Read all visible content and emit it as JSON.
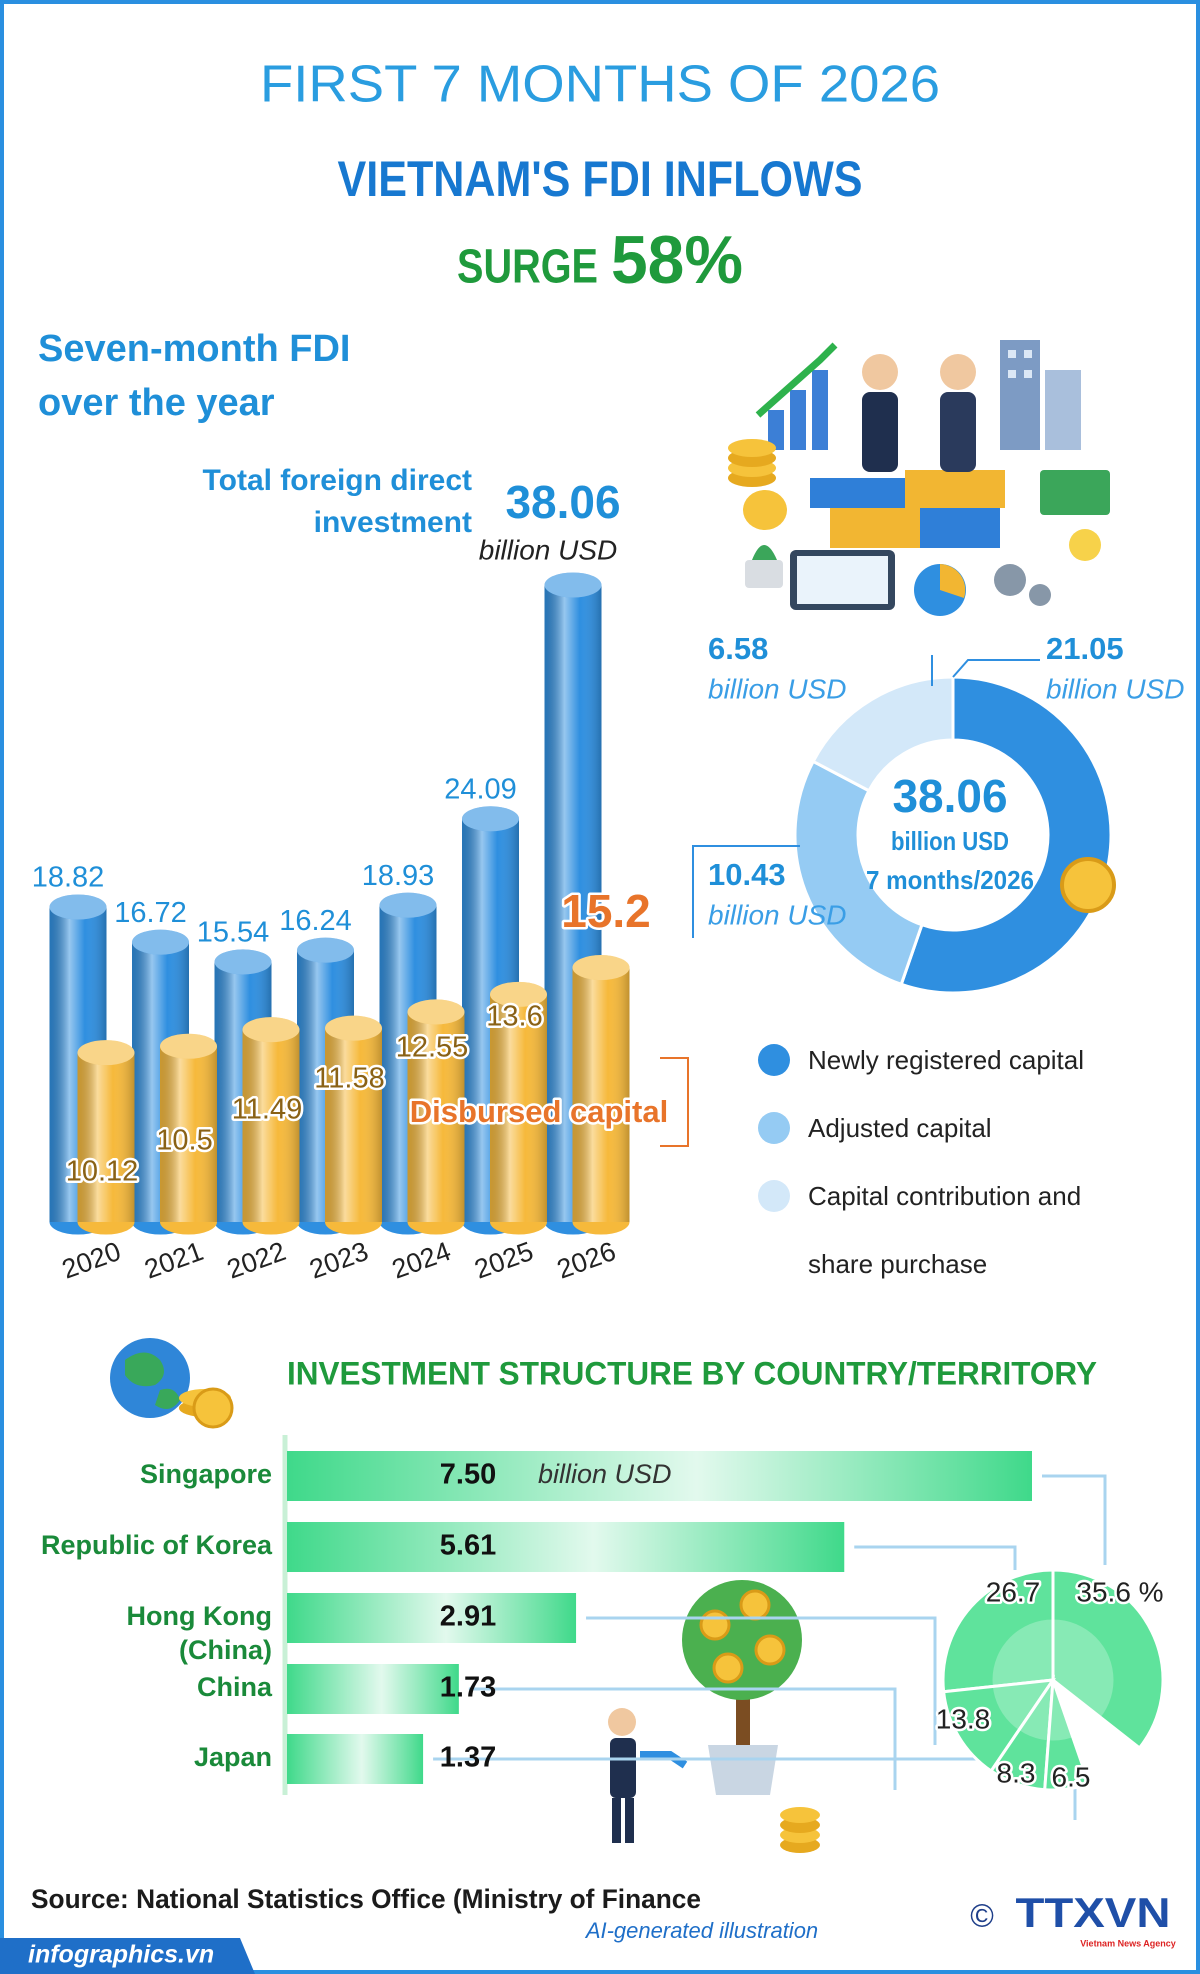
{
  "header": {
    "line1": "FIRST 7 MONTHS OF 2026",
    "line2": "VIETNAM'S FDI INFLOWS",
    "surge_word": "SURGE",
    "surge_value": "58%"
  },
  "chart_data": [
    {
      "type": "bar",
      "title": "Seven-month FDI over the year",
      "categories": [
        "2020",
        "2021",
        "2022",
        "2023",
        "2024",
        "2025",
        "2026"
      ],
      "unit": "billion USD",
      "series": [
        {
          "name": "Total foreign direct investment",
          "color": "#2f8fe0",
          "values": [
            18.82,
            16.72,
            15.54,
            16.24,
            18.93,
            24.09,
            38.06
          ]
        },
        {
          "name": "Disbursed capital",
          "color": "#f6b93b",
          "values": [
            10.12,
            10.5,
            11.49,
            11.58,
            12.55,
            13.6,
            15.2
          ]
        }
      ]
    },
    {
      "type": "donut",
      "total": 38.06,
      "unit": "billion USD",
      "center_label": "7 months/2026",
      "categories": [
        "Newly registered capital",
        "Adjusted capital",
        "Capital contribution and share purchase"
      ],
      "values": [
        21.05,
        10.43,
        6.58
      ],
      "colors": [
        "#2f8fe0",
        "#95cbf3",
        "#d3e8f9"
      ]
    },
    {
      "type": "hbar",
      "title": "INVESTMENT STRUCTURE BY COUNTRY/TERRITORY",
      "categories": [
        "Singapore",
        "Republic of Korea",
        "Hong Kong (China)",
        "China",
        "Japan"
      ],
      "values": [
        7.5,
        5.61,
        2.91,
        1.73,
        1.37
      ],
      "value_labels": [
        "7.50",
        "5.61",
        "2.91",
        "1.73",
        "1.37"
      ],
      "unit": "billion USD",
      "color": "#3fd98a"
    },
    {
      "type": "pie",
      "values": [
        35.6,
        26.7,
        13.8,
        8.3,
        6.5
      ],
      "value_labels": [
        "35.6 %",
        "26.7",
        "13.8",
        "8.3",
        "6.5"
      ],
      "color": "#5fe39c"
    }
  ],
  "footer": {
    "source": "Source: National Statistics Office (Ministry of Finance",
    "note": "AI-generated illustration",
    "website": "infographics.vn",
    "copyright": "©",
    "agency": "TTXVN",
    "agency_full": "Vietnam News Agency"
  }
}
